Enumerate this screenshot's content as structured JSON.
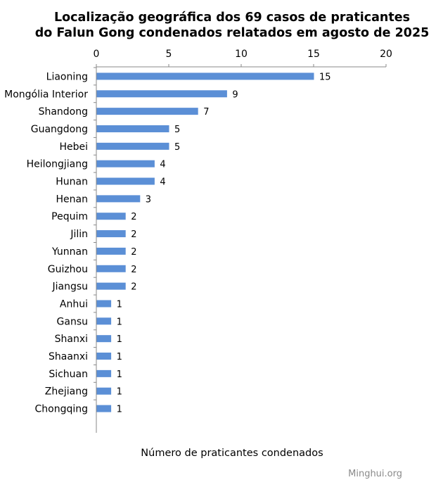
{
  "chart_data": {
    "type": "bar",
    "orientation": "horizontal",
    "title_line1": "Localização geográfica dos 69 casos de praticantes",
    "title_line2": "do Falun Gong condenados relatados em agosto de 2025",
    "xlabel": "Número de praticantes condenados",
    "ylabel": "",
    "xlim": [
      0,
      20
    ],
    "xticks": [
      0,
      5,
      10,
      15,
      20
    ],
    "x_axis_position": "top",
    "grid": false,
    "legend": "none",
    "bar_color": "#5b8fd6",
    "categories": [
      "Liaoning",
      "Mongólia Interior",
      "Shandong",
      "Guangdong",
      "Hebei",
      "Heilongjiang",
      "Hunan",
      "Henan",
      "Pequim",
      "Jilin",
      "Yunnan",
      "Guizhou",
      "Jiangsu",
      "Anhui",
      "Gansu",
      "Shanxi",
      "Shaanxi",
      "Sichuan",
      "Zhejiang",
      "Chongqing"
    ],
    "values": [
      15,
      9,
      7,
      5,
      5,
      4,
      4,
      3,
      2,
      2,
      2,
      2,
      2,
      1,
      1,
      1,
      1,
      1,
      1,
      1
    ]
  },
  "credit": "Minghui.org"
}
